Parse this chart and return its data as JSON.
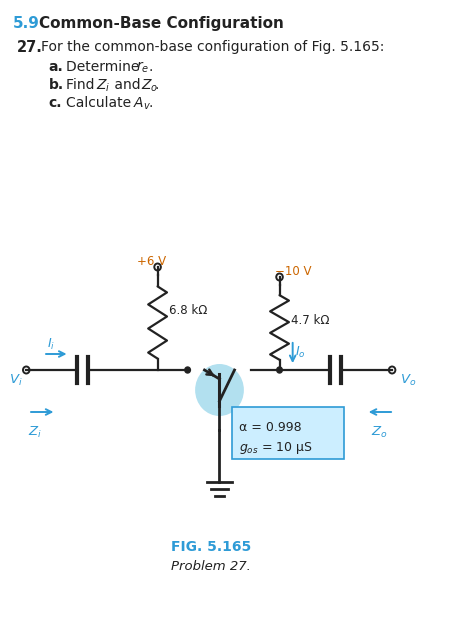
{
  "section_num": "5.9",
  "section_title": "  Common-Base Configuration",
  "problem_num": "27.",
  "problem_text": "  For the common-base configuration of Fig. 5.165:",
  "V1": "+6 V",
  "V2": "−10 V",
  "R1": "6.8 kΩ",
  "R2": "4.7 kΩ",
  "alpha_text": "α = 0.998",
  "gos_text": "g",
  "gos_val": " = 10 μS",
  "fig_label": "FIG. 5.165",
  "fig_caption": "Problem 27.",
  "blue": "#2e9bd6",
  "cyan_bg": "#cceeff",
  "orange": "#cc6600",
  "dark": "#222222",
  "transistor_blue": "#aaddee",
  "page_bg": "#ffffff"
}
